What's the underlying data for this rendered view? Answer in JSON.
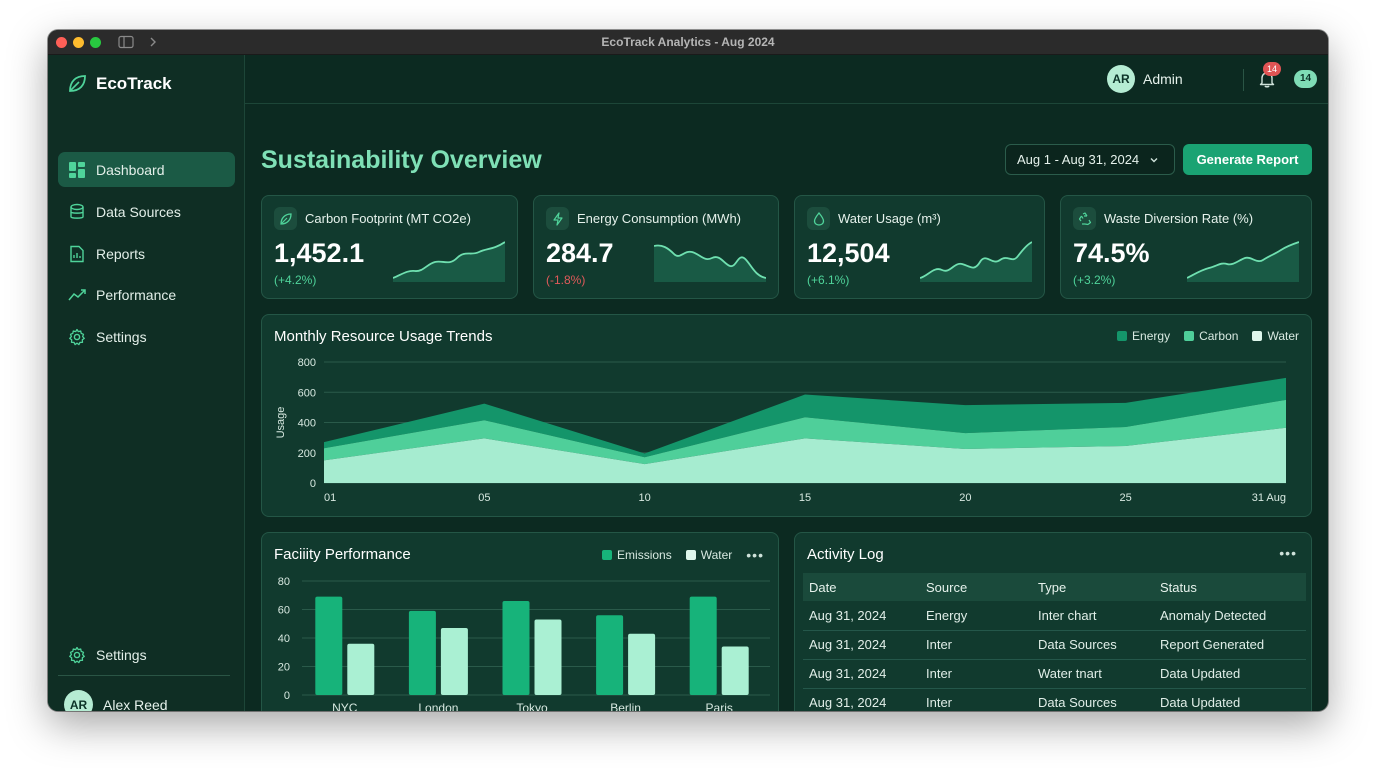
{
  "window": {
    "title": "EcoTrack Analytics - Aug 2024"
  },
  "sidebar": {
    "brand": "EcoTrack",
    "items": [
      {
        "label": "Dashboard",
        "icon": "dashboard-icon",
        "active": true
      },
      {
        "label": "Data Sources",
        "icon": "database-icon"
      },
      {
        "label": "Reports",
        "icon": "report-icon"
      },
      {
        "label": "Performance",
        "icon": "trend-icon"
      },
      {
        "label": "Settings",
        "icon": "gear-icon"
      }
    ],
    "bottom_settings": "Settings",
    "user": {
      "initials": "AR",
      "name": "Alex Reed"
    }
  },
  "topbar": {
    "admin_initials": "AR",
    "admin_label": "Admin",
    "notification_count": "14",
    "count_pill": "14"
  },
  "page": {
    "title": "Sustainability Overview",
    "date_range": "Aug 1 - Aug 31, 2024",
    "generate_label": "Generate Report"
  },
  "kpis": [
    {
      "title": "Carbon Footprint (MT CO2e)",
      "value": "1,452.1",
      "change": "(+4.2%)",
      "trend": "up",
      "icon": "leaf-icon"
    },
    {
      "title": "Energy Consumption (MWh)",
      "value": "284.7",
      "change": "(-1.8%)",
      "trend": "down",
      "icon": "bolt-icon"
    },
    {
      "title": "Water Usage (m³)",
      "value": "12,504",
      "change": "(+6.1%)",
      "trend": "up",
      "icon": "droplet-icon"
    },
    {
      "title": "Waste Diversion Rate (%)",
      "value": "74.5%",
      "change": "(+3.2%)",
      "trend": "up",
      "icon": "recycle-icon"
    }
  ],
  "colors": {
    "energy": "#14956a",
    "carbon": "#4fcf9a",
    "water": "#a6ecd0",
    "emissions": "#17b37a",
    "water_bar": "#aaf0d3",
    "accent": "#7fe0b6"
  },
  "trends": {
    "title": "Monthly Resource Usage Trends",
    "ylabel": "Usage",
    "legend": [
      "Energy",
      "Carbon",
      "Water"
    ]
  },
  "facility": {
    "title": "Faciiity Performance",
    "legend": [
      "Emissions",
      "Water"
    ]
  },
  "activity": {
    "title": "Activity Log",
    "columns": [
      "Date",
      "Source",
      "Type",
      "Status"
    ],
    "rows": [
      [
        "Aug 31, 2024",
        "Energy",
        "Inter chart",
        "Anomaly Detected"
      ],
      [
        "Aug 31, 2024",
        "Inter",
        "Data Sources",
        "Report Generated"
      ],
      [
        "Aug 31, 2024",
        "Inter",
        "Water tnart",
        "Data Updated"
      ],
      [
        "Aug 31, 2024",
        "Inter",
        "Data Sources",
        "Data Updated"
      ]
    ]
  },
  "chart_data": [
    {
      "type": "area",
      "title": "Monthly Resource Usage Trends",
      "ylabel": "Usage",
      "xlabel": "",
      "x": [
        "01",
        "05",
        "10",
        "15",
        "20",
        "25",
        "31 Aug"
      ],
      "ylim": [
        0,
        800
      ],
      "yticks": [
        0,
        200,
        400,
        600,
        800
      ],
      "stacked": true,
      "grid": true,
      "legend_position": "top-right",
      "series": [
        {
          "name": "Water",
          "values": [
            150,
            295,
            125,
            295,
            225,
            245,
            365
          ]
        },
        {
          "name": "Carbon",
          "values": [
            80,
            120,
            45,
            140,
            105,
            125,
            185
          ]
        },
        {
          "name": "Energy",
          "values": [
            40,
            110,
            25,
            150,
            185,
            160,
            145
          ]
        }
      ]
    },
    {
      "type": "bar",
      "title": "Faciiity Performance",
      "categories": [
        "NYC",
        "London",
        "Tokyo",
        "Berlin",
        "Paris"
      ],
      "ylim": [
        0,
        80
      ],
      "yticks": [
        0,
        20,
        40,
        60,
        80
      ],
      "legend_position": "top-right",
      "series": [
        {
          "name": "Emissions",
          "values": [
            69,
            59,
            66,
            56,
            69
          ]
        },
        {
          "name": "Water",
          "values": [
            36,
            47,
            53,
            43,
            34
          ]
        }
      ]
    }
  ]
}
